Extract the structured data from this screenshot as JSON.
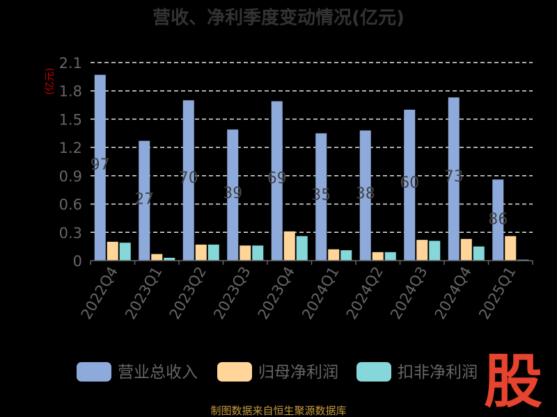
{
  "chart_data": {
    "type": "bar",
    "title": "营收、净利季度变动情况(亿元)",
    "ylabel": "(亿元)",
    "ylim": [
      0,
      2.1
    ],
    "yticks": [
      "0",
      "0.3",
      "0.6",
      "0.9",
      "1.2",
      "1.5",
      "1.8",
      "2.1"
    ],
    "grid": true,
    "legend_position": "bottom",
    "categories": [
      "2022Q4",
      "2023Q1",
      "2023Q2",
      "2023Q3",
      "2023Q4",
      "2024Q1",
      "2024Q2",
      "2024Q3",
      "2024Q4",
      "2025Q1"
    ],
    "series": [
      {
        "name": "营业总收入",
        "color": "#8eaadb",
        "values": [
          1.97,
          1.27,
          1.7,
          1.39,
          1.69,
          1.35,
          1.38,
          1.6,
          1.73,
          0.86
        ],
        "labels": [
          "97",
          "27",
          "70",
          "39",
          "69",
          "35",
          "38",
          "60",
          "73",
          "86"
        ]
      },
      {
        "name": "归母净利润",
        "color": "#ffd59a",
        "values": [
          0.2,
          0.07,
          0.17,
          0.16,
          0.31,
          0.12,
          0.09,
          0.22,
          0.23,
          0.26
        ]
      },
      {
        "name": "扣非净利润",
        "color": "#86d7d9",
        "values": [
          0.19,
          0.03,
          0.17,
          0.16,
          0.26,
          0.11,
          0.09,
          0.21,
          0.15,
          0.01
        ]
      }
    ]
  },
  "footer": {
    "source": "制图数据来自恒生聚源数据库",
    "logo": "股"
  }
}
